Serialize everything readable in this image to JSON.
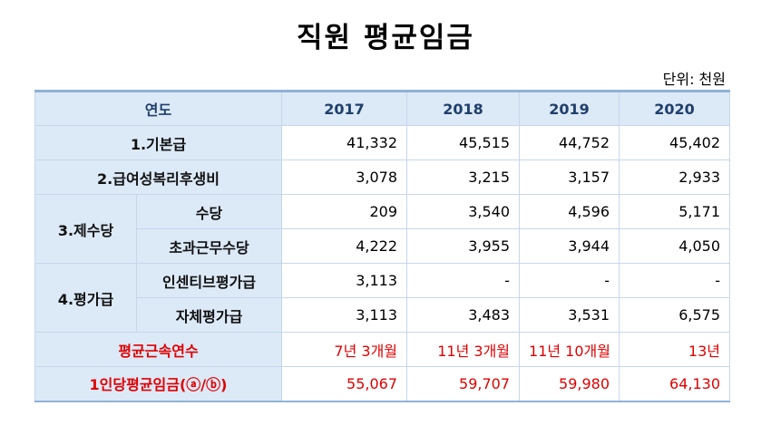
{
  "title": "직원 평균임금",
  "unit": "단위: 천원",
  "header": {
    "label": "연도",
    "years": [
      "2017",
      "2018",
      "2019",
      "2020"
    ]
  },
  "rows": {
    "basic_pay": {
      "label": "1.기본급",
      "values": [
        "41,332",
        "45,515",
        "44,752",
        "45,402"
      ]
    },
    "welfare": {
      "label": "2.급여성복리후생비",
      "values": [
        "3,078",
        "3,215",
        "3,157",
        "2,933"
      ]
    },
    "allowances": {
      "label": "3.제수당",
      "sub": [
        {
          "label": "수당",
          "values": [
            "209",
            "3,540",
            "4,596",
            "5,171"
          ]
        },
        {
          "label": "초과근무수당",
          "values": [
            "4,222",
            "3,955",
            "3,944",
            "4,050"
          ]
        }
      ]
    },
    "evaluation": {
      "label": "4.평가급",
      "sub": [
        {
          "label": "인센티브평가급",
          "values": [
            "3,113",
            "-",
            "-",
            "-"
          ]
        },
        {
          "label": "자체평가급",
          "values": [
            "3,113",
            "3,483",
            "3,531",
            "6,575"
          ]
        }
      ]
    },
    "tenure": {
      "label": "평균근속연수",
      "values": [
        "7년 3개월",
        "11년 3개월",
        "11년 10개월",
        "13년"
      ]
    },
    "avg_wage": {
      "label": "1인당평균임금(ⓐ/ⓑ)",
      "values": [
        "55,067",
        "59,707",
        "59,980",
        "64,130"
      ]
    }
  },
  "colors": {
    "header_bg": "#dce9f7",
    "border": "#c7d7ea",
    "emphasis": "#e00000"
  }
}
